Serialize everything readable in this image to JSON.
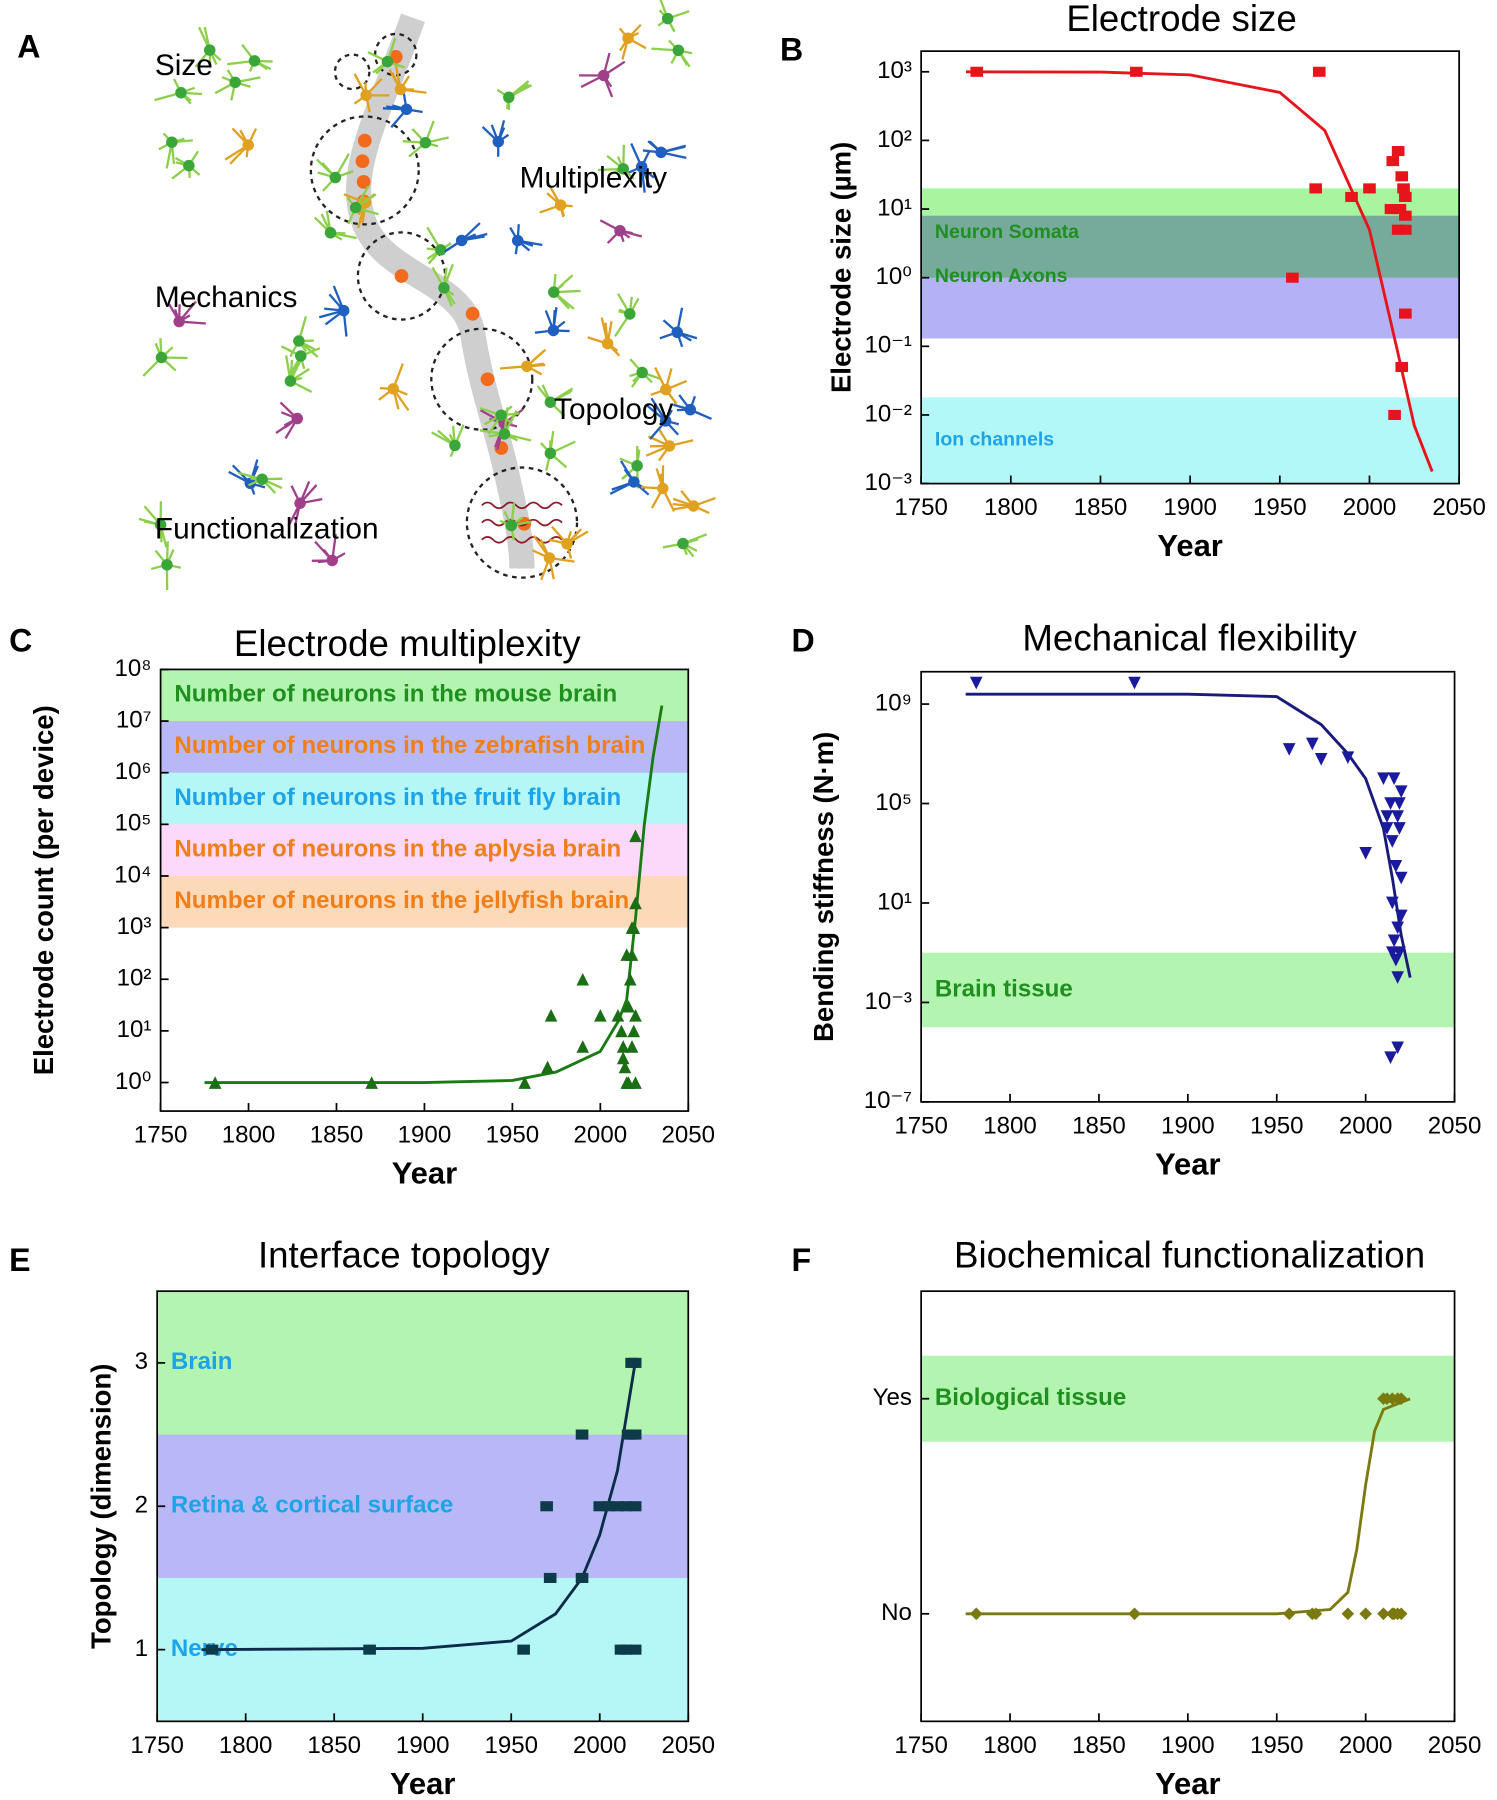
{
  "illustration": {
    "panel": "A",
    "labels": [
      "Size",
      "Multiplexity",
      "Mechanics",
      "Topology",
      "Functionalization"
    ]
  },
  "chart_data": [
    {
      "type": "scatter",
      "panel": "B",
      "title": "Electrode size",
      "xlabel": "Year",
      "ylabel": "Electrode size (µm)",
      "log_y": true,
      "xlim": [
        1750,
        2050
      ],
      "xticks": [
        1750,
        1800,
        1850,
        1900,
        1950,
        2000,
        2050
      ],
      "ylim": [
        0.001,
        2000
      ],
      "yticks": [
        {
          "value": 0.001,
          "label": "10⁻³"
        },
        {
          "value": 0.01,
          "label": "10⁻²"
        },
        {
          "value": 0.1,
          "label": "10⁻¹"
        },
        {
          "value": 1,
          "label": "10⁰"
        },
        {
          "value": 10,
          "label": "10¹"
        },
        {
          "value": 100,
          "label": "10²"
        },
        {
          "value": 1000,
          "label": "10³"
        }
      ],
      "bands": [
        {
          "label": "Neuron Somata",
          "from": 1,
          "to": 20,
          "color": "#a8f5a0",
          "label_color": "#1f8f1f"
        },
        {
          "label": "Neuron Axons",
          "from": 0.13,
          "to": 8,
          "color": "#b3b2f7",
          "label_color": "#1f8f1f"
        },
        {
          "label": "Ion channels",
          "from": 0.001,
          "to": 0.018,
          "color": "#b3f8f8",
          "label_color": "#1ea4e6"
        }
      ],
      "points": {
        "marker": "square",
        "color": "#e8141c",
        "x": [
          1781,
          1870,
          1972,
          1957,
          1970,
          1990,
          2000,
          2013,
          2016,
          2012,
          2015,
          2018,
          2019,
          2020,
          2017,
          2020,
          2016,
          2020,
          2020,
          2018,
          2014
        ],
        "y": [
          1000,
          1000,
          1000,
          1,
          20,
          15,
          20,
          50,
          70,
          10,
          10,
          30,
          20,
          15,
          10,
          8,
          5,
          5,
          0.3,
          0.05,
          0.01
        ]
      },
      "fit": {
        "color": "#e8141c",
        "x": [
          1775,
          1850,
          1900,
          1950,
          1975,
          2000,
          2015,
          2025,
          2035
        ],
        "y": [
          1000,
          990,
          900,
          500,
          140,
          5,
          0.1,
          0.007,
          0.0015
        ]
      }
    },
    {
      "type": "scatter",
      "panel": "C",
      "title": "Electrode multiplexity",
      "xlabel": "Year",
      "ylabel": "Electrode count (per device)",
      "log_y": true,
      "xlim": [
        1750,
        2050
      ],
      "xticks": [
        1750,
        1800,
        1850,
        1900,
        1950,
        2000,
        2050
      ],
      "ylim": [
        0.28,
        100000000
      ],
      "yticks": [
        {
          "value": 1,
          "label": "10⁰"
        },
        {
          "value": 10,
          "label": "10¹"
        },
        {
          "value": 100,
          "label": "10²"
        },
        {
          "value": 1000,
          "label": "10³"
        },
        {
          "value": 10000,
          "label": "10⁴"
        },
        {
          "value": 100000,
          "label": "10⁵"
        },
        {
          "value": 1000000,
          "label": "10⁶"
        },
        {
          "value": 10000000,
          "label": "10⁷"
        },
        {
          "value": 100000000,
          "label": "10⁸"
        }
      ],
      "bands": [
        {
          "label": "Number of neurons in the mouse brain",
          "from": 10000000,
          "to": 100000000,
          "color": "#b3f5b0",
          "label_color": "#1f8f1f"
        },
        {
          "label": "Number of neurons in the zebrafish brain",
          "from": 1000000,
          "to": 10000000,
          "color": "#b9b8f6",
          "label_color": "#f07f1a"
        },
        {
          "label": "Number of neurons in the fruit fly brain",
          "from": 100000,
          "to": 1000000,
          "color": "#b5f7f7",
          "label_color": "#1ea4e6"
        },
        {
          "label": "Number of neurons in the aplysia brain",
          "from": 10000,
          "to": 100000,
          "color": "#fcd8fb",
          "label_color": "#f07f1a"
        },
        {
          "label": "Number of neurons in the jellyfish brain",
          "from": 1000,
          "to": 10000,
          "color": "#fcd9b8",
          "label_color": "#f07f1a"
        }
      ],
      "points": {
        "marker": "triangle-up",
        "color": "#1a6e14",
        "x": [
          1781,
          1870,
          1957,
          1970,
          1972,
          1990,
          1990,
          2000,
          2010,
          2012,
          2013,
          2014,
          2015,
          2016,
          2017,
          2018,
          2019,
          2020,
          2020,
          2018,
          2015,
          2020,
          2019,
          2018,
          2020,
          2016,
          2013
        ],
        "y": [
          1,
          1,
          1,
          2,
          20,
          100,
          5,
          20,
          20,
          10,
          5,
          2,
          1,
          30,
          100,
          300,
          1000,
          3000,
          60000,
          1000,
          300,
          1,
          10,
          5,
          20,
          1,
          3
        ]
      },
      "fit": {
        "color": "#1a7a14",
        "x": [
          1775,
          1900,
          1950,
          1975,
          2000,
          2010,
          2015,
          2020,
          2025,
          2030,
          2035
        ],
        "y": [
          1,
          1,
          1.1,
          1.6,
          4,
          15,
          40,
          1500,
          100000,
          2000000,
          20000000
        ]
      }
    },
    {
      "type": "scatter",
      "panel": "D",
      "title": "Mechanical flexibility",
      "xlabel": "Year",
      "ylabel": "Bending stiffness (N·m)",
      "log_y": true,
      "xlim": [
        1750,
        2050
      ],
      "xticks": [
        1750,
        1800,
        1850,
        1900,
        1950,
        2000,
        2050
      ],
      "ylim": [
        1e-07,
        20000000000
      ],
      "yticks": [
        {
          "value": 1e-07,
          "label": "10⁻⁷"
        },
        {
          "value": 0.001,
          "label": "10⁻³"
        },
        {
          "value": 10,
          "label": "10¹"
        },
        {
          "value": 100000,
          "label": "10⁵"
        },
        {
          "value": 1000000000,
          "label": "10⁹"
        }
      ],
      "bands": [
        {
          "label": "Brain tissue",
          "from": 0.0001,
          "to": 0.1,
          "color": "#b3f5b0",
          "label_color": "#1f8f1f"
        }
      ],
      "points": {
        "marker": "triangle-down",
        "color": "#1a1a9e",
        "x": [
          1781,
          1870,
          1957,
          1970,
          1975,
          1990,
          2000,
          2010,
          2012,
          2014,
          2015,
          2016,
          2017,
          2018,
          2019,
          2020,
          2012,
          2015,
          2018,
          2020,
          2016,
          2019,
          2017,
          2020,
          2018,
          2015,
          2019,
          2014,
          2018
        ],
        "y": [
          7000000000,
          7000000000,
          15000000,
          25000000,
          6000000,
          7000000,
          1000,
          1000000,
          30000,
          100000,
          3000,
          1000000,
          300,
          30000,
          100000,
          300000,
          10000,
          10,
          1,
          100,
          0.3,
          0.1,
          0.05,
          3,
          0.01,
          0.1,
          10000,
          6e-06,
          1.5e-05
        ]
      },
      "fit": {
        "color": "#1a1a7e",
        "x": [
          1775,
          1900,
          1950,
          1975,
          1990,
          2000,
          2010,
          2015,
          2020,
          2025
        ],
        "y": [
          2500000000,
          2500000000,
          2000000000,
          150000000,
          10000000,
          1000000,
          10000,
          100,
          0.5,
          0.01
        ]
      }
    },
    {
      "type": "scatter",
      "panel": "E",
      "title": "Interface topology",
      "xlabel": "Year",
      "ylabel": "Topology (dimension)",
      "log_y": false,
      "xlim": [
        1750,
        2050
      ],
      "xticks": [
        1750,
        1800,
        1850,
        1900,
        1950,
        2000,
        2050
      ],
      "ylim": [
        0.5,
        3.5
      ],
      "yticks": [
        1,
        2,
        3
      ],
      "bands": [
        {
          "label": "Brain",
          "from": 2.5,
          "to": 3.5,
          "color": "#b3f5b0",
          "label_color": "#1ea4e6"
        },
        {
          "label": "Retina & cortical surface",
          "from": 1.5,
          "to": 2.5,
          "color": "#b9b8f6",
          "label_color": "#1ea4e6"
        },
        {
          "label": "Nerve",
          "from": 0.5,
          "to": 1.5,
          "color": "#b5f7f7",
          "label_color": "#1ea4e6"
        }
      ],
      "points": {
        "marker": "square",
        "color": "#0d3b4a",
        "x": [
          1781,
          1870,
          1957,
          1970,
          1972,
          1990,
          1990,
          2000,
          2005,
          2010,
          2015,
          2020,
          2016,
          2018,
          2020,
          2018,
          2020,
          2012,
          2015,
          2020
        ],
        "y": [
          1,
          1,
          1,
          2,
          1.5,
          1.5,
          2.5,
          2,
          2,
          2,
          2,
          2,
          2.5,
          2.5,
          2.5,
          3,
          3,
          1,
          1,
          1
        ]
      },
      "fit": {
        "color": "#0d2b4a",
        "x": [
          1775,
          1900,
          1950,
          1975,
          1990,
          2000,
          2010,
          2020
        ],
        "y": [
          1,
          1.01,
          1.06,
          1.25,
          1.5,
          1.8,
          2.25,
          3
        ]
      }
    },
    {
      "type": "scatter",
      "panel": "F",
      "title": "Biochemical functionalization",
      "xlabel": "Year",
      "log_y": false,
      "xlim": [
        1750,
        2050
      ],
      "xticks": [
        1750,
        1800,
        1850,
        1900,
        1950,
        2000,
        2050
      ],
      "ylim": [
        -0.5,
        1.5
      ],
      "yticks": [
        {
          "value": 0,
          "label": "No"
        },
        {
          "value": 1,
          "label": "Yes"
        }
      ],
      "bands": [
        {
          "label": "Biological tissue",
          "from": 0.8,
          "to": 1.2,
          "color": "#b3f5b0",
          "label_color": "#1f8f1f"
        }
      ],
      "points": {
        "marker": "diamond",
        "color": "#7a7a10",
        "x": [
          1781,
          1870,
          1957,
          1970,
          1972,
          1990,
          2000,
          2010,
          2015,
          2016,
          2018,
          2020,
          2010,
          2012,
          2015,
          2018,
          2020
        ],
        "y": [
          0,
          0,
          0,
          0,
          0,
          0,
          0,
          0,
          0,
          0,
          0,
          0,
          1,
          1,
          1,
          1,
          1
        ]
      },
      "fit": {
        "color": "#7a7a10",
        "x": [
          1775,
          1950,
          1980,
          1990,
          1995,
          2000,
          2005,
          2010,
          2025
        ],
        "y": [
          0,
          0,
          0.02,
          0.1,
          0.3,
          0.6,
          0.85,
          0.95,
          1
        ]
      }
    }
  ]
}
